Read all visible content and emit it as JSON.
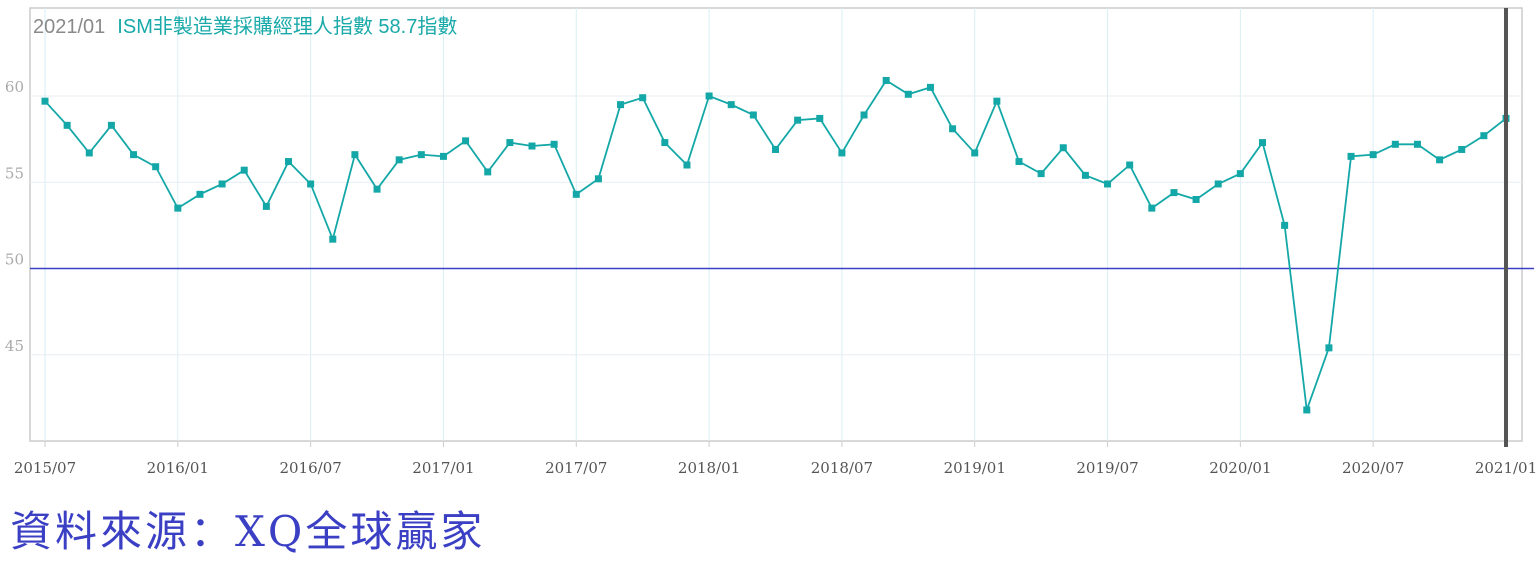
{
  "header": {
    "date": "2021/01",
    "series_label": "ISM非製造業採購經理人指數 58.7指數"
  },
  "source": "資料來源：XQ全球贏家",
  "colors": {
    "series": "#14a7a7",
    "reference": "#3b3fc4",
    "cursor": "#555555",
    "grid": "#d8eef5"
  },
  "chart_data": {
    "type": "line",
    "title": "ISM非製造業採購經理人指數",
    "xlabel": "",
    "ylabel": "",
    "ylim": [
      40,
      65
    ],
    "yticks": [
      60,
      55,
      50,
      45
    ],
    "reference_line": 50,
    "cursor": "2021/01",
    "xtick_labels": [
      "2015/07",
      "2016/01",
      "2016/07",
      "2017/01",
      "2017/07",
      "2018/01",
      "2018/07",
      "2019/01",
      "2019/07",
      "2020/01",
      "2020/07",
      "2021/01"
    ],
    "start": "2015/07",
    "values": [
      59.7,
      58.3,
      56.7,
      58.3,
      56.6,
      55.9,
      53.5,
      54.3,
      54.9,
      55.7,
      53.6,
      56.2,
      54.9,
      51.7,
      56.6,
      54.6,
      56.3,
      56.6,
      56.5,
      57.4,
      55.6,
      57.3,
      57.1,
      57.2,
      54.3,
      55.2,
      59.5,
      59.9,
      57.3,
      56.0,
      60.0,
      59.5,
      58.9,
      56.9,
      58.6,
      58.7,
      56.7,
      58.9,
      60.9,
      60.1,
      60.5,
      58.1,
      56.7,
      59.7,
      56.2,
      55.5,
      57.0,
      55.4,
      54.9,
      56.0,
      53.5,
      54.4,
      54.0,
      54.9,
      55.5,
      57.3,
      52.5,
      41.8,
      45.4,
      56.5,
      56.6,
      57.2,
      57.2,
      56.3,
      56.9,
      57.7,
      58.7
    ]
  }
}
